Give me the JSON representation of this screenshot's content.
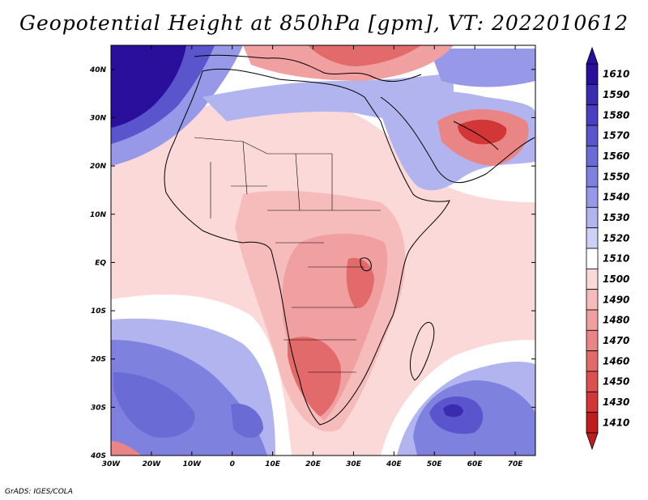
{
  "title": "Geopotential Height at 850hPa [gpm], VT: 2022010612",
  "footer": "GrADS: IGES/COLA",
  "map": {
    "lat_labels": [
      "40N",
      "30N",
      "20N",
      "10N",
      "EQ",
      "10S",
      "20S",
      "30S",
      "40S"
    ],
    "lon_labels": [
      "30W",
      "20W",
      "10W",
      "0",
      "10E",
      "20E",
      "30E",
      "40E",
      "50E",
      "60E",
      "70E"
    ],
    "lat_range": [
      -40,
      45
    ],
    "lon_range": [
      -30,
      75
    ]
  },
  "colorbar": {
    "levels": [
      "1610",
      "1590",
      "1580",
      "1570",
      "1560",
      "1550",
      "1540",
      "1530",
      "1520",
      "1510",
      "1500",
      "1490",
      "1480",
      "1470",
      "1460",
      "1450",
      "1430",
      "1410"
    ],
    "colors": [
      "#2a0f9c",
      "#3b2bb0",
      "#4a3fc0",
      "#5a55cc",
      "#6b6bd6",
      "#7f81df",
      "#9798e8",
      "#b2b4f0",
      "#cfd0f7",
      "#ffffff",
      "#fbd9d9",
      "#f6bcbc",
      "#f0a0a0",
      "#ea8585",
      "#e36a6a",
      "#dc5050",
      "#d23636",
      "#c01e1e"
    ]
  },
  "field": {
    "regions": [
      {
        "name": "background-1500",
        "color": "#fbd9d9"
      },
      {
        "name": "north-atlantic-high",
        "color": "#2a0f9c"
      },
      {
        "name": "north-atlantic-ring-1",
        "color": "#5a55cc"
      },
      {
        "name": "north-atlantic-ring-2",
        "color": "#9798e8"
      },
      {
        "name": "sahara-band",
        "color": "#ffffff"
      },
      {
        "name": "arabia-blue",
        "color": "#b2b4f0"
      },
      {
        "name": "africa-low",
        "color": "#f0a0a0"
      },
      {
        "name": "east-africa-low",
        "color": "#ea8585"
      },
      {
        "name": "south-african-low",
        "color": "#e36a6a"
      },
      {
        "name": "iran-low",
        "color": "#d23636"
      },
      {
        "name": "south-atlantic-high",
        "color": "#7f81df"
      },
      {
        "name": "south-indian-high",
        "color": "#6b6bd6"
      },
      {
        "name": "south-indian-core",
        "color": "#3b2bb0"
      }
    ]
  }
}
